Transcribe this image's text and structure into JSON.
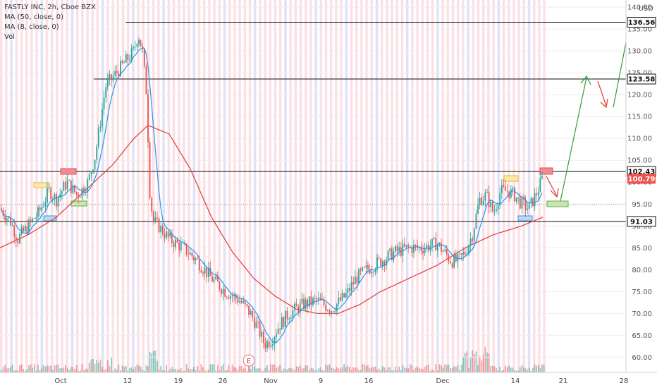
{
  "legend": {
    "symbol": "FASTLY INC, 2h, Cboe BZX",
    "ma50": "MA (50, close, 0)",
    "ma8": "MA (8, close, 0)",
    "vol": "Vol"
  },
  "currency": "USD",
  "event_marker": "E",
  "colors": {
    "up": "#26a69a",
    "down": "#ef5350",
    "ma8": "#2196f3",
    "ma50": "#e53935",
    "arrow_up": "#2e9e3a",
    "arrow_down": "#e53935",
    "session_pink": "#f8c6d2",
    "session_blue": "#c9c6ee",
    "tag_dark": "#111111",
    "tag_red": "#ef5350"
  },
  "chart_data": {
    "type": "candlestick",
    "x_tick_labels": [
      "Oct",
      "12",
      "19",
      "26",
      "Nov",
      "9",
      "16",
      "Dec",
      "14",
      "21",
      "28"
    ],
    "y_tick_labels": [
      "60.00",
      "65.00",
      "70.00",
      "75.00",
      "80.00",
      "85.00",
      "90.00",
      "95.00",
      "100.00",
      "105.00",
      "110.00",
      "115.00",
      "120.00",
      "125.00",
      "130.00",
      "135.00",
      "140.00"
    ],
    "y_range": [
      56.5,
      141
    ],
    "price_levels": [
      {
        "label": "136.56",
        "value": 136.56
      },
      {
        "label": "123.58",
        "value": 123.58
      },
      {
        "label": "102.43",
        "value": 102.43
      },
      {
        "label": "91.03",
        "value": 91.03
      }
    ],
    "current_price": {
      "label": "100.79",
      "value": 100.79
    },
    "price_anchors": [
      [
        0,
        94
      ],
      [
        15,
        91
      ],
      [
        25,
        87
      ],
      [
        40,
        90
      ],
      [
        55,
        93
      ],
      [
        70,
        98
      ],
      [
        80,
        96
      ],
      [
        95,
        100
      ],
      [
        110,
        97
      ],
      [
        125,
        100
      ],
      [
        135,
        106
      ],
      [
        150,
        122
      ],
      [
        160,
        124
      ],
      [
        170,
        126
      ],
      [
        180,
        128
      ],
      [
        190,
        130
      ],
      [
        196,
        134
      ],
      [
        202,
        130
      ],
      [
        208,
        120
      ],
      [
        213,
        96
      ],
      [
        218,
        91
      ],
      [
        225,
        90
      ],
      [
        240,
        87
      ],
      [
        260,
        85
      ],
      [
        280,
        82
      ],
      [
        300,
        78
      ],
      [
        320,
        75
      ],
      [
        340,
        73
      ],
      [
        355,
        70
      ],
      [
        365,
        67
      ],
      [
        375,
        63
      ],
      [
        385,
        64
      ],
      [
        395,
        67
      ],
      [
        410,
        70
      ],
      [
        430,
        72
      ],
      [
        450,
        73
      ],
      [
        470,
        71
      ],
      [
        490,
        74
      ],
      [
        505,
        78
      ],
      [
        520,
        80
      ],
      [
        540,
        82
      ],
      [
        560,
        84
      ],
      [
        580,
        85
      ],
      [
        600,
        85
      ],
      [
        620,
        86
      ],
      [
        640,
        82
      ],
      [
        650,
        82
      ],
      [
        660,
        84
      ],
      [
        670,
        88
      ],
      [
        680,
        96
      ],
      [
        690,
        97
      ],
      [
        700,
        93
      ],
      [
        710,
        98
      ],
      [
        720,
        98
      ],
      [
        730,
        97
      ],
      [
        740,
        95
      ],
      [
        750,
        94
      ],
      [
        760,
        97
      ],
      [
        770,
        101
      ]
    ],
    "ma50_anchors": [
      [
        0,
        85
      ],
      [
        40,
        88
      ],
      [
        80,
        92
      ],
      [
        120,
        98
      ],
      [
        160,
        104
      ],
      [
        190,
        110
      ],
      [
        210,
        113
      ],
      [
        240,
        111
      ],
      [
        270,
        103
      ],
      [
        300,
        92
      ],
      [
        330,
        84
      ],
      [
        360,
        78
      ],
      [
        390,
        74
      ],
      [
        420,
        71
      ],
      [
        450,
        70
      ],
      [
        480,
        70
      ],
      [
        510,
        72
      ],
      [
        540,
        75
      ],
      [
        580,
        78
      ],
      [
        620,
        81
      ],
      [
        660,
        85
      ],
      [
        700,
        88
      ],
      [
        740,
        90
      ],
      [
        770,
        92
      ]
    ]
  }
}
